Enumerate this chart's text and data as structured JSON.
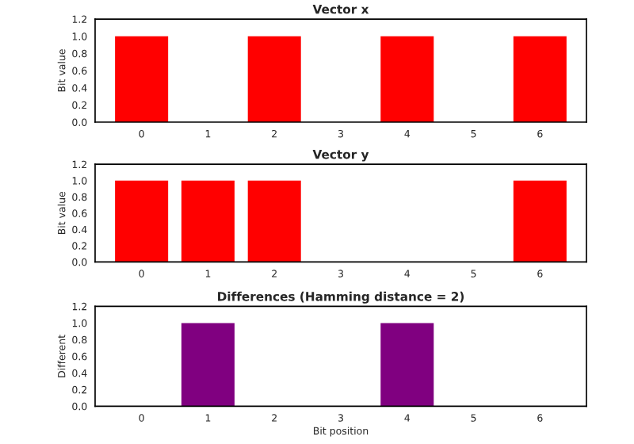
{
  "chart_data": [
    {
      "type": "bar",
      "title": "Vector x",
      "ylabel": "Bit value",
      "categories": [
        "0",
        "1",
        "2",
        "3",
        "4",
        "5",
        "6"
      ],
      "values": [
        1,
        0,
        1,
        0,
        1,
        0,
        1
      ],
      "color": "#ff0000",
      "ylim": [
        0,
        1.2
      ],
      "yticks": [
        {
          "value": 0,
          "label": "0.0"
        },
        {
          "value": 0.2,
          "label": "0.2"
        },
        {
          "value": 0.4,
          "label": "0.4"
        },
        {
          "value": 0.6,
          "label": "0.6"
        },
        {
          "value": 0.8,
          "label": "0.8"
        },
        {
          "value": 1,
          "label": "1.0"
        },
        {
          "value": 1.2,
          "label": "1.2"
        }
      ]
    },
    {
      "type": "bar",
      "title": "Vector y",
      "ylabel": "Bit value",
      "categories": [
        "0",
        "1",
        "2",
        "3",
        "4",
        "5",
        "6"
      ],
      "values": [
        1,
        1,
        1,
        0,
        0,
        0,
        1
      ],
      "color": "#ff0000",
      "ylim": [
        0,
        1.2
      ],
      "yticks": [
        {
          "value": 0,
          "label": "0.0"
        },
        {
          "value": 0.2,
          "label": "0.2"
        },
        {
          "value": 0.4,
          "label": "0.4"
        },
        {
          "value": 0.6,
          "label": "0.6"
        },
        {
          "value": 0.8,
          "label": "0.8"
        },
        {
          "value": 1,
          "label": "1.0"
        },
        {
          "value": 1.2,
          "label": "1.2"
        }
      ]
    },
    {
      "type": "bar",
      "title": "Differences (Hamming distance = 2)",
      "ylabel": "Different",
      "xlabel": "Bit position",
      "categories": [
        "0",
        "1",
        "2",
        "3",
        "4",
        "5",
        "6"
      ],
      "values": [
        0,
        1,
        0,
        0,
        1,
        0,
        0
      ],
      "color": "#800080",
      "ylim": [
        0,
        1.2
      ],
      "yticks": [
        {
          "value": 0,
          "label": "0.0"
        },
        {
          "value": 0.2,
          "label": "0.2"
        },
        {
          "value": 0.4,
          "label": "0.4"
        },
        {
          "value": 0.6,
          "label": "0.6"
        },
        {
          "value": 0.8,
          "label": "0.8"
        },
        {
          "value": 1,
          "label": "1.0"
        },
        {
          "value": 1.2,
          "label": "1.2"
        }
      ]
    }
  ]
}
